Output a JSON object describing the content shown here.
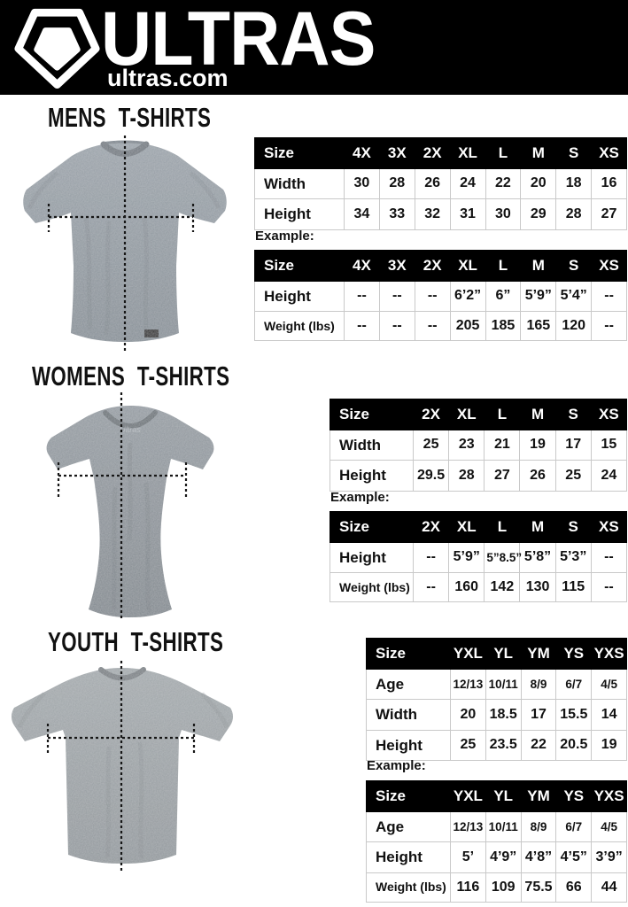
{
  "header": {
    "brand": "ULTRAS",
    "site": "ultras.com",
    "logo_icon": "pentagon-crest-icon"
  },
  "colors": {
    "header_bg": "#000000",
    "table_header_bg": "#000000",
    "table_header_text": "#ffffff",
    "table_border": "#c9c9c9",
    "text": "#111111",
    "shirt_mens": "#8c959c",
    "shirt_womens": "#878e94",
    "shirt_youth": "#989ea1"
  },
  "sections": [
    {
      "title": "MENS T-SHIRTS",
      "example_label": "Example:",
      "size_table": {
        "header": [
          "Size",
          "4X",
          "3X",
          "2X",
          "XL",
          "L",
          "M",
          "S",
          "XS"
        ],
        "rows": [
          {
            "label": "Width",
            "values": [
              "30",
              "28",
              "26",
              "24",
              "22",
              "20",
              "18",
              "16"
            ]
          },
          {
            "label": "Height",
            "values": [
              "34",
              "33",
              "32",
              "31",
              "30",
              "29",
              "28",
              "27"
            ]
          }
        ]
      },
      "example_table": {
        "header": [
          "Size",
          "4X",
          "3X",
          "2X",
          "XL",
          "L",
          "M",
          "S",
          "XS"
        ],
        "rows": [
          {
            "label": "Height",
            "values": [
              "--",
              "--",
              "--",
              "6’2”",
              "6”",
              "5’9”",
              "5’4”",
              "--"
            ]
          },
          {
            "label": "Weight (lbs)",
            "values": [
              "--",
              "--",
              "--",
              "205",
              "185",
              "165",
              "120",
              "--"
            ]
          }
        ]
      }
    },
    {
      "title": "WOMENS T-SHIRTS",
      "example_label": "Example:",
      "size_table": {
        "header": [
          "Size",
          "2X",
          "XL",
          "L",
          "M",
          "S",
          "XS"
        ],
        "rows": [
          {
            "label": "Width",
            "values": [
              "25",
              "23",
              "21",
              "19",
              "17",
              "15"
            ]
          },
          {
            "label": "Height",
            "values": [
              "29.5",
              "28",
              "27",
              "26",
              "25",
              "24"
            ]
          }
        ]
      },
      "example_table": {
        "header": [
          "Size",
          "2X",
          "XL",
          "L",
          "M",
          "S",
          "XS"
        ],
        "rows": [
          {
            "label": "Height",
            "values": [
              "--",
              "5’9”",
              "5”8.5”",
              "5’8”",
              "5’3”",
              "--"
            ]
          },
          {
            "label": "Weight (lbs)",
            "values": [
              "--",
              "160",
              "142",
              "130",
              "115",
              "--"
            ]
          }
        ]
      }
    },
    {
      "title": "YOUTH T-SHIRTS",
      "example_label": "Example:",
      "size_table": {
        "header": [
          "Size",
          "YXL",
          "YL",
          "YM",
          "YS",
          "YXS"
        ],
        "rows": [
          {
            "label": "Age",
            "values": [
              "12/13",
              "10/11",
              "8/9",
              "6/7",
              "4/5"
            ]
          },
          {
            "label": "Width",
            "values": [
              "20",
              "18.5",
              "17",
              "15.5",
              "14"
            ]
          },
          {
            "label": "Height",
            "values": [
              "25",
              "23.5",
              "22",
              "20.5",
              "19"
            ]
          }
        ]
      },
      "example_table": {
        "header": [
          "Size",
          "YXL",
          "YL",
          "YM",
          "YS",
          "YXS"
        ],
        "rows": [
          {
            "label": "Age",
            "values": [
              "12/13",
              "10/11",
              "8/9",
              "6/7",
              "4/5"
            ]
          },
          {
            "label": "Height",
            "values": [
              "5’",
              "4’9”",
              "4’8”",
              "4’5”",
              "3’9”"
            ]
          },
          {
            "label": "Weight (lbs)",
            "values": [
              "116",
              "109",
              "75.5",
              "66",
              "44"
            ]
          }
        ]
      }
    }
  ]
}
